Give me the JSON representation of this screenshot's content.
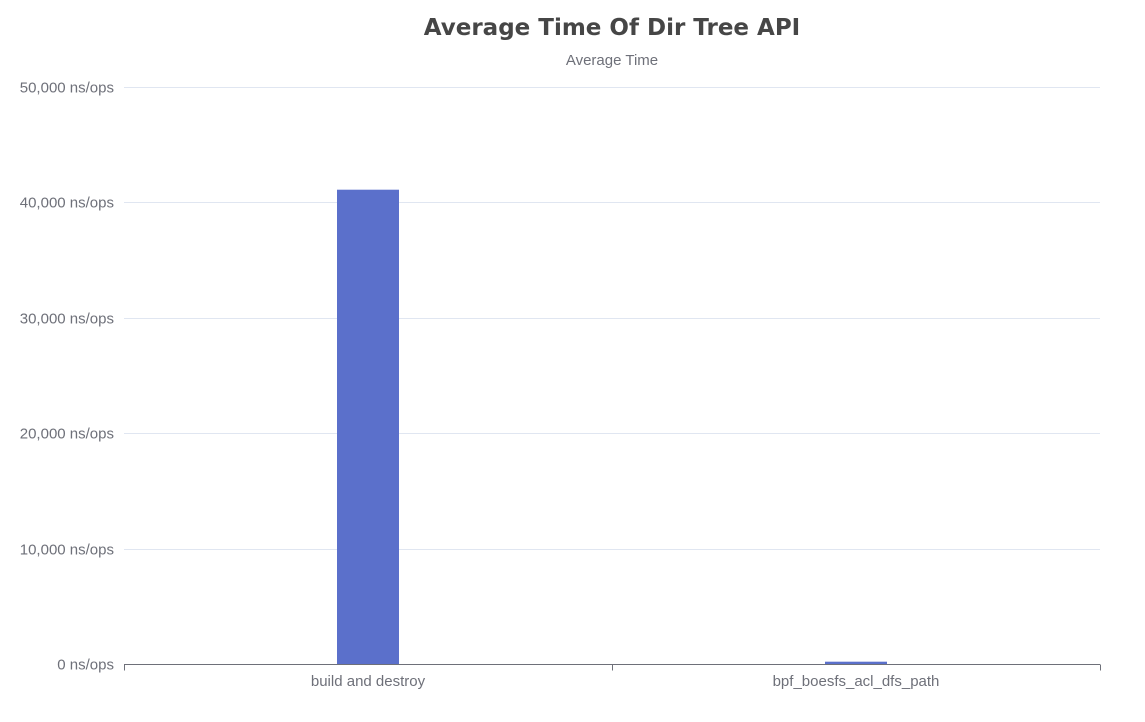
{
  "chart_data": {
    "type": "bar",
    "title": "Average Time Of Dir Tree API",
    "subtitle": "Average Time",
    "categories": [
      "build and destroy",
      "bpf_boesfs_acl_dfs_path"
    ],
    "series": [
      {
        "values": [
          41100,
          200
        ]
      }
    ],
    "ylim": [
      0,
      50000
    ],
    "yticks": [
      0,
      10000,
      20000,
      30000,
      40000,
      50000
    ],
    "ytick_labels": [
      "0 ns/ops",
      "10,000 ns/ops",
      "20,000 ns/ops",
      "30,000 ns/ops",
      "40,000 ns/ops",
      "50,000 ns/ops"
    ],
    "xlabel": "",
    "ylabel": "",
    "grid": true,
    "bar_color": "#5b70cb"
  }
}
